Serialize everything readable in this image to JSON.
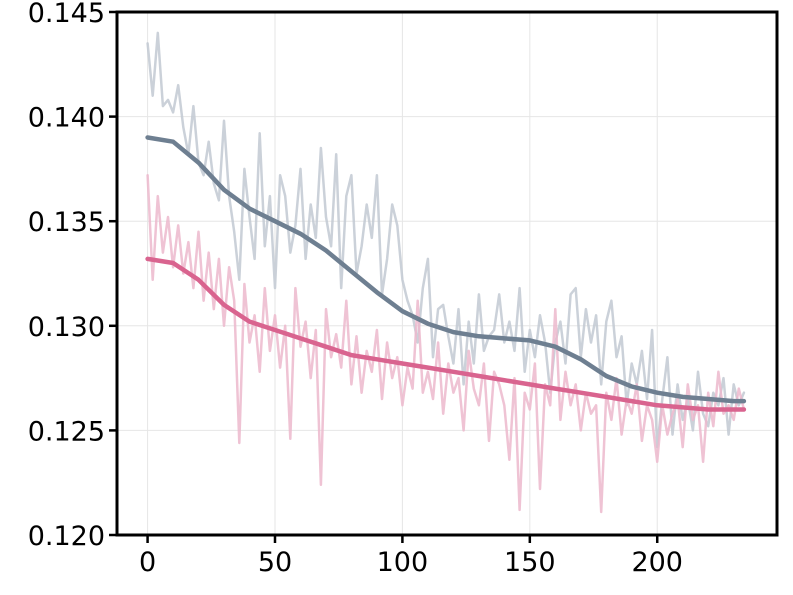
{
  "chart_data": {
    "type": "line",
    "title": "",
    "xlabel": "",
    "ylabel": "",
    "xlim": [
      -12,
      247
    ],
    "ylim": [
      0.12,
      0.145
    ],
    "grid": true,
    "legend": "none",
    "x_ticks": [
      0,
      50,
      100,
      150,
      200
    ],
    "x_tick_labels": [
      "0",
      "50",
      "100",
      "150",
      "200"
    ],
    "y_ticks": [
      0.12,
      0.125,
      0.13,
      0.135,
      0.14,
      0.145
    ],
    "y_tick_labels": [
      "0.120",
      "0.125",
      "0.130",
      "0.135",
      "0.140",
      "0.145"
    ],
    "colors": {
      "slate_raw": "#c2c9d2",
      "slate_smooth": "#6e7f91",
      "pink_raw": "#ecb9cc",
      "pink_smooth": "#d9648f",
      "grid": "#e6e6e6",
      "axis": "#000000"
    },
    "series": [
      {
        "style": "raw",
        "color": "#c2c9d2",
        "x": [
          0,
          2,
          4,
          6,
          8,
          10,
          12,
          14,
          16,
          18,
          20,
          22,
          24,
          26,
          28,
          30,
          32,
          34,
          36,
          38,
          40,
          42,
          44,
          46,
          48,
          50,
          52,
          54,
          56,
          58,
          60,
          62,
          64,
          66,
          68,
          70,
          72,
          74,
          76,
          78,
          80,
          82,
          84,
          86,
          88,
          90,
          92,
          94,
          96,
          98,
          100,
          102,
          104,
          106,
          108,
          110,
          112,
          114,
          116,
          118,
          120,
          122,
          124,
          126,
          128,
          130,
          132,
          134,
          136,
          138,
          140,
          142,
          144,
          146,
          148,
          150,
          152,
          154,
          156,
          158,
          160,
          162,
          164,
          166,
          168,
          170,
          172,
          174,
          176,
          178,
          180,
          182,
          184,
          186,
          188,
          190,
          192,
          194,
          196,
          198,
          200,
          202,
          204,
          206,
          208,
          210,
          212,
          214,
          216,
          218,
          220,
          222,
          224,
          226,
          228,
          230,
          232,
          234
        ],
        "values": [
          0.1435,
          0.141,
          0.144,
          0.1405,
          0.1408,
          0.1402,
          0.1415,
          0.1395,
          0.1382,
          0.1405,
          0.1378,
          0.1372,
          0.1388,
          0.1368,
          0.136,
          0.1398,
          0.1362,
          0.1345,
          0.1322,
          0.1375,
          0.1352,
          0.1332,
          0.1392,
          0.1338,
          0.1362,
          0.1318,
          0.1372,
          0.1362,
          0.1335,
          0.1348,
          0.1375,
          0.1332,
          0.1358,
          0.1342,
          0.1385,
          0.1352,
          0.1338,
          0.1382,
          0.1318,
          0.1362,
          0.1372,
          0.1325,
          0.1338,
          0.1358,
          0.1342,
          0.1372,
          0.1315,
          0.1332,
          0.1358,
          0.1348,
          0.1322,
          0.1312,
          0.1305,
          0.1292,
          0.1318,
          0.1332,
          0.1285,
          0.1308,
          0.131,
          0.1295,
          0.1282,
          0.1308,
          0.1272,
          0.1302,
          0.1282,
          0.1315,
          0.1288,
          0.1295,
          0.1298,
          0.1315,
          0.1292,
          0.1302,
          0.1288,
          0.1318,
          0.1278,
          0.1298,
          0.1285,
          0.1305,
          0.1292,
          0.1268,
          0.1292,
          0.1302,
          0.1282,
          0.1315,
          0.1318,
          0.1285,
          0.1308,
          0.1292,
          0.1305,
          0.1272,
          0.1302,
          0.1312,
          0.1285,
          0.1295,
          0.1262,
          0.1282,
          0.1272,
          0.1288,
          0.1265,
          0.1298,
          0.1242,
          0.1265,
          0.1285,
          0.1248,
          0.1272,
          0.1255,
          0.1265,
          0.125,
          0.1278,
          0.1258,
          0.1252,
          0.1268,
          0.1262,
          0.1275,
          0.1248,
          0.1272,
          0.1262,
          0.1268
        ]
      },
      {
        "style": "raw",
        "color": "#ecb9cc",
        "x": [
          0,
          2,
          4,
          6,
          8,
          10,
          12,
          14,
          16,
          18,
          20,
          22,
          24,
          26,
          28,
          30,
          32,
          34,
          36,
          38,
          40,
          42,
          44,
          46,
          48,
          50,
          52,
          54,
          56,
          58,
          60,
          62,
          64,
          66,
          68,
          70,
          72,
          74,
          76,
          78,
          80,
          82,
          84,
          86,
          88,
          90,
          92,
          94,
          96,
          98,
          100,
          102,
          104,
          106,
          108,
          110,
          112,
          114,
          116,
          118,
          120,
          122,
          124,
          126,
          128,
          130,
          132,
          134,
          136,
          138,
          140,
          142,
          144,
          146,
          148,
          150,
          152,
          154,
          156,
          158,
          160,
          162,
          164,
          166,
          168,
          170,
          172,
          174,
          176,
          178,
          180,
          182,
          184,
          186,
          188,
          190,
          192,
          194,
          196,
          198,
          200,
          202,
          204,
          206,
          208,
          210,
          212,
          214,
          216,
          218,
          220,
          222,
          224,
          226,
          228,
          230,
          232,
          234
        ],
        "values": [
          0.1372,
          0.1322,
          0.1362,
          0.1335,
          0.1352,
          0.1328,
          0.1348,
          0.1325,
          0.134,
          0.1318,
          0.1345,
          0.1312,
          0.1335,
          0.1308,
          0.1332,
          0.13,
          0.1328,
          0.1312,
          0.1244,
          0.132,
          0.1292,
          0.1305,
          0.1278,
          0.1318,
          0.1288,
          0.1305,
          0.128,
          0.13,
          0.1246,
          0.1318,
          0.129,
          0.1302,
          0.1275,
          0.1298,
          0.1224,
          0.1308,
          0.1285,
          0.1296,
          0.128,
          0.1312,
          0.1272,
          0.1295,
          0.1268,
          0.1288,
          0.1278,
          0.1298,
          0.1265,
          0.1292,
          0.1275,
          0.1285,
          0.1262,
          0.128,
          0.127,
          0.1312,
          0.1268,
          0.1278,
          0.1265,
          0.1292,
          0.1258,
          0.1282,
          0.1268,
          0.1275,
          0.125,
          0.1288,
          0.127,
          0.1262,
          0.1282,
          0.1245,
          0.1278,
          0.1272,
          0.1262,
          0.1236,
          0.1275,
          0.1212,
          0.1268,
          0.126,
          0.1282,
          0.1222,
          0.1272,
          0.1262,
          0.1308,
          0.1255,
          0.1278,
          0.1262,
          0.1272,
          0.125,
          0.1268,
          0.1258,
          0.1262,
          0.1211,
          0.1268,
          0.1255,
          0.1275,
          0.1248,
          0.1265,
          0.1258,
          0.1272,
          0.1245,
          0.1262,
          0.1255,
          0.1235,
          0.1262,
          0.1248,
          0.1258,
          0.1265,
          0.1242,
          0.1272,
          0.1255,
          0.1262,
          0.1235,
          0.1268,
          0.1252,
          0.1278,
          0.1258,
          0.1262,
          0.1255,
          0.127,
          0.126
        ]
      },
      {
        "style": "smooth",
        "color": "#6e7f91",
        "x": [
          0,
          10,
          20,
          30,
          40,
          50,
          60,
          70,
          80,
          90,
          100,
          110,
          120,
          130,
          140,
          150,
          160,
          170,
          180,
          190,
          200,
          210,
          220,
          230,
          234
        ],
        "values": [
          0.139,
          0.1388,
          0.1378,
          0.1365,
          0.1356,
          0.135,
          0.1344,
          0.1336,
          0.1326,
          0.1316,
          0.1307,
          0.1301,
          0.1297,
          0.1295,
          0.1294,
          0.1293,
          0.129,
          0.1284,
          0.1276,
          0.1271,
          0.1268,
          0.1266,
          0.1265,
          0.1264,
          0.1264
        ]
      },
      {
        "style": "smooth",
        "color": "#d9648f",
        "x": [
          0,
          10,
          20,
          30,
          40,
          50,
          60,
          70,
          80,
          90,
          100,
          110,
          120,
          130,
          140,
          150,
          160,
          170,
          180,
          190,
          200,
          210,
          220,
          230,
          234
        ],
        "values": [
          0.1332,
          0.133,
          0.1322,
          0.131,
          0.1302,
          0.1298,
          0.1294,
          0.129,
          0.1286,
          0.1284,
          0.1282,
          0.128,
          0.1278,
          0.1276,
          0.1274,
          0.1272,
          0.127,
          0.1268,
          0.1266,
          0.1264,
          0.1262,
          0.1261,
          0.126,
          0.126,
          0.126
        ]
      }
    ]
  }
}
